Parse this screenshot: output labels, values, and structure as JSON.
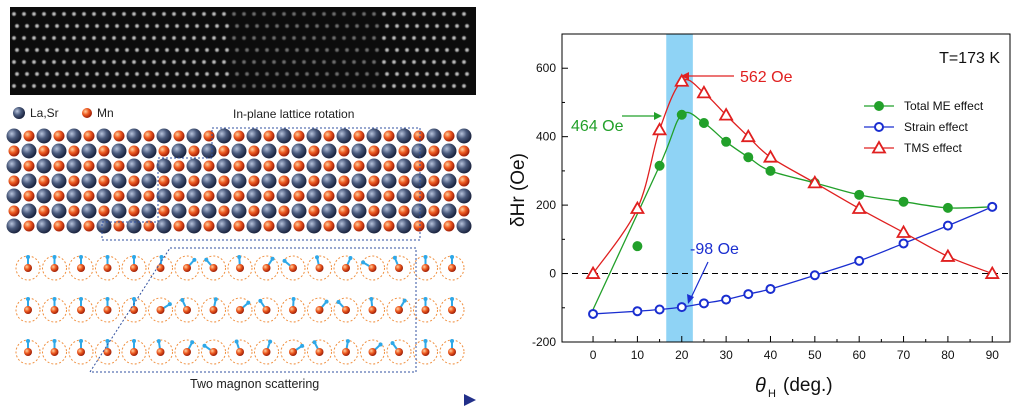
{
  "left_panel": {
    "legend_la_sr": "La,Sr",
    "legend_mn": "Mn",
    "title_rotation": "In-plane lattice rotation",
    "title_magnon": "Two magnon scattering",
    "colors": {
      "la_sr": "#3a4a6a",
      "mn": "#e04a1a",
      "spin": "#2ea8e8",
      "dashed_box": "#3050a0"
    }
  },
  "chart_data": {
    "type": "line",
    "annotation_temp": "T=173 K",
    "xlabel_main": "θ",
    "xlabel_sub": "H",
    "xlabel_unit": "(deg.)",
    "ylabel": "δHr (Oe)",
    "xlim": [
      -7,
      94
    ],
    "ylim": [
      -200,
      700
    ],
    "xticks": [
      0,
      10,
      20,
      30,
      40,
      50,
      60,
      70,
      80,
      90
    ],
    "yticks": [
      -200,
      0,
      200,
      400,
      600
    ],
    "highlight_band": [
      16.5,
      22.5
    ],
    "highlight_color": "#8fd3f5",
    "zero_line": true,
    "series": [
      {
        "name": "Total ME effect",
        "color": "#22a02a",
        "marker": "filled-circle",
        "x": [
          10,
          15,
          20,
          25,
          30,
          35,
          40,
          50,
          60,
          70,
          80
        ],
        "y": [
          80,
          315,
          464,
          440,
          385,
          340,
          300,
          265,
          230,
          210,
          192
        ]
      },
      {
        "name": "Strain effect",
        "color": "#1a2ed0",
        "marker": "open-circle",
        "x": [
          0,
          10,
          15,
          20,
          25,
          30,
          35,
          40,
          50,
          60,
          70,
          80,
          90
        ],
        "y": [
          -118,
          -110,
          -105,
          -98,
          -87,
          -76,
          -60,
          -45,
          -5,
          37,
          88,
          140,
          195
        ]
      },
      {
        "name": "TMS effect",
        "color": "#e02020",
        "marker": "open-triangle",
        "x": [
          0,
          10,
          15,
          20,
          25,
          30,
          35,
          40,
          50,
          60,
          70,
          80,
          90
        ],
        "y": [
          0,
          190,
          420,
          562,
          528,
          463,
          400,
          340,
          265,
          190,
          120,
          50,
          0
        ]
      }
    ],
    "annotations": [
      {
        "text": "562 Oe",
        "color": "#e02020"
      },
      {
        "text": "464 Oe",
        "color": "#22a02a"
      },
      {
        "text": "-98 Oe",
        "color": "#1a2ed0"
      }
    ]
  }
}
